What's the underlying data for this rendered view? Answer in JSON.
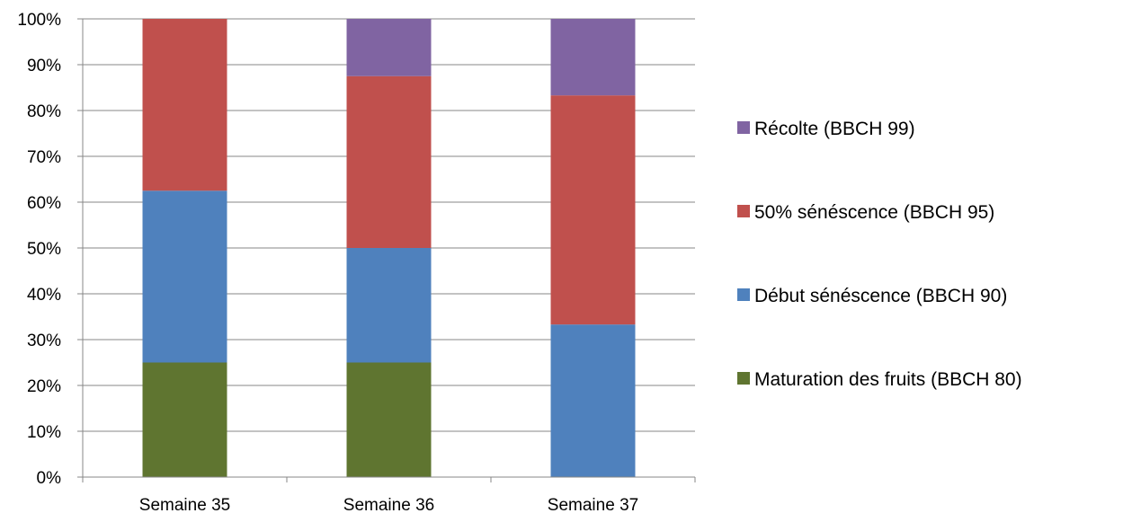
{
  "chart_data": {
    "type": "bar",
    "stacked": true,
    "percent": true,
    "categories": [
      "Semaine 35",
      "Semaine 36",
      "Semaine 37"
    ],
    "series": [
      {
        "name": "Maturation des fruits (BBCH 80)",
        "color": "#5f7530",
        "values": [
          25,
          25,
          0
        ]
      },
      {
        "name": "Début sénéscence (BBCH 90)",
        "color": "#4f81bd",
        "values": [
          37.5,
          25,
          33.3
        ]
      },
      {
        "name": "50% sénéscence (BBCH 95)",
        "color": "#c0504d",
        "values": [
          37.5,
          37.5,
          50
        ]
      },
      {
        "name": "Récolte (BBCH 99)",
        "color": "#8064a2",
        "values": [
          0,
          12.5,
          16.7
        ]
      }
    ],
    "ylim": [
      0,
      100
    ],
    "yticks": [
      "0%",
      "10%",
      "20%",
      "30%",
      "40%",
      "50%",
      "60%",
      "70%",
      "80%",
      "90%",
      "100%"
    ],
    "grid": true,
    "legend_position": "right",
    "legend_order": "reversed"
  }
}
